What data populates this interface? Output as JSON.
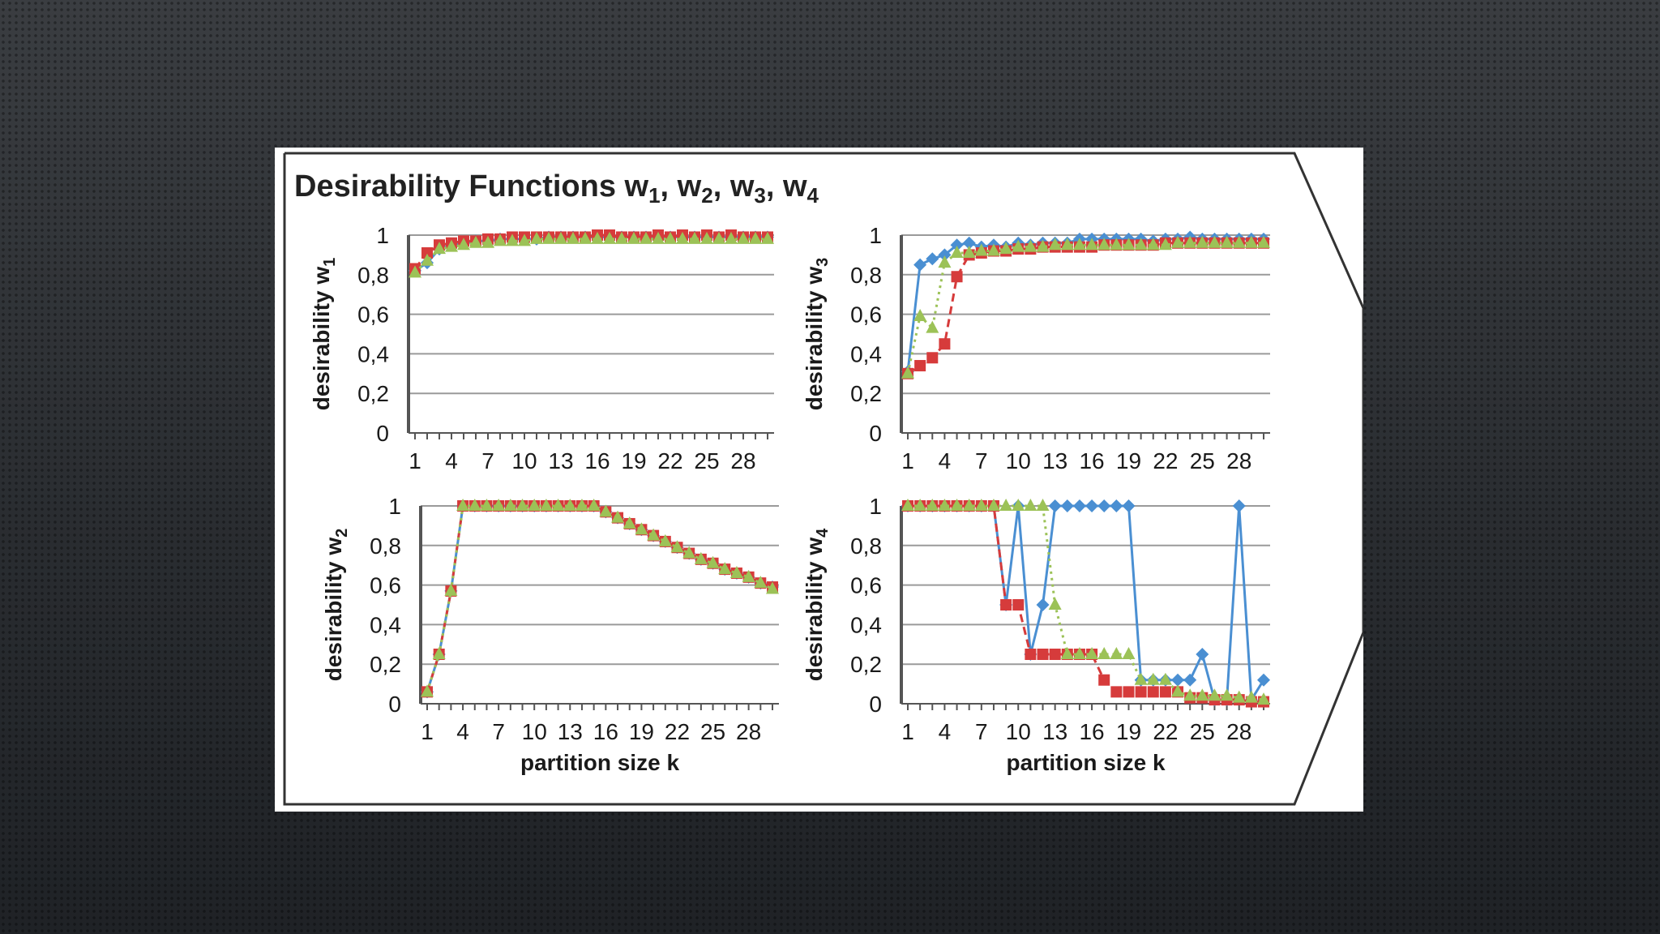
{
  "figure_title": {
    "main": "Desirability Functions w",
    "parts": [
      "1",
      ", w",
      "2",
      ", w",
      "3",
      ", w",
      "4"
    ]
  },
  "colors": {
    "blue": "#4a8fd2",
    "red": "#d63b3b",
    "green": "#9cc257",
    "grid": "#9a9a9a",
    "axis": "#555555",
    "frame": "#333333"
  },
  "chart_data": [
    {
      "type": "line",
      "id": "w1",
      "ylabel": "desirability w",
      "ylabel_sub": "1",
      "xlabel": "",
      "ylim": [
        0,
        1
      ],
      "yticks": [
        "1",
        "0,8",
        "0,6",
        "0,4",
        "0,2",
        "0"
      ],
      "xticks": [
        "1",
        "4",
        "7",
        "10",
        "13",
        "16",
        "19",
        "22",
        "25",
        "28"
      ],
      "x": [
        1,
        2,
        3,
        4,
        5,
        6,
        7,
        8,
        9,
        10,
        11,
        12,
        13,
        14,
        15,
        16,
        17,
        18,
        19,
        20,
        21,
        22,
        23,
        24,
        25,
        26,
        27,
        28,
        29,
        30
      ],
      "series": [
        {
          "color": "blue",
          "marker": "diamond",
          "values": [
            0.82,
            0.86,
            0.93,
            0.95,
            0.96,
            0.97,
            0.97,
            0.98,
            0.98,
            0.98,
            0.98,
            0.99,
            0.99,
            0.99,
            0.99,
            0.99,
            0.99,
            0.99,
            0.99,
            0.99,
            0.99,
            0.99,
            0.99,
            0.99,
            0.99,
            0.99,
            0.99,
            0.99,
            0.99,
            0.99
          ]
        },
        {
          "color": "red",
          "marker": "square",
          "values": [
            0.83,
            0.91,
            0.95,
            0.96,
            0.97,
            0.97,
            0.98,
            0.98,
            0.99,
            0.99,
            0.99,
            0.99,
            0.99,
            0.99,
            0.99,
            1.0,
            1.0,
            0.99,
            0.99,
            0.99,
            1.0,
            0.99,
            1.0,
            0.99,
            1.0,
            0.99,
            1.0,
            0.99,
            0.99,
            0.99
          ]
        },
        {
          "color": "green",
          "marker": "triangle",
          "values": [
            0.81,
            0.87,
            0.93,
            0.94,
            0.95,
            0.96,
            0.96,
            0.97,
            0.97,
            0.97,
            0.98,
            0.98,
            0.98,
            0.98,
            0.98,
            0.98,
            0.98,
            0.98,
            0.98,
            0.98,
            0.98,
            0.98,
            0.98,
            0.98,
            0.98,
            0.98,
            0.98,
            0.98,
            0.98,
            0.98
          ]
        }
      ]
    },
    {
      "type": "line",
      "id": "w3",
      "ylabel": "desirability w",
      "ylabel_sub": "3",
      "xlabel": "",
      "ylim": [
        0,
        1
      ],
      "yticks": [
        "1",
        "0,8",
        "0,6",
        "0,4",
        "0,2",
        "0"
      ],
      "xticks": [
        "1",
        "4",
        "7",
        "10",
        "13",
        "16",
        "19",
        "22",
        "25",
        "28"
      ],
      "x": [
        1,
        2,
        3,
        4,
        5,
        6,
        7,
        8,
        9,
        10,
        11,
        12,
        13,
        14,
        15,
        16,
        17,
        18,
        19,
        20,
        21,
        22,
        23,
        24,
        25,
        26,
        27,
        28,
        29,
        30
      ],
      "series": [
        {
          "color": "blue",
          "marker": "diamond",
          "values": [
            0.31,
            0.85,
            0.88,
            0.9,
            0.95,
            0.96,
            0.94,
            0.95,
            0.94,
            0.96,
            0.95,
            0.96,
            0.96,
            0.96,
            0.98,
            0.98,
            0.98,
            0.98,
            0.98,
            0.98,
            0.97,
            0.98,
            0.98,
            0.99,
            0.98,
            0.98,
            0.98,
            0.98,
            0.98,
            0.98
          ]
        },
        {
          "color": "red",
          "marker": "square",
          "values": [
            0.3,
            0.34,
            0.38,
            0.45,
            0.79,
            0.9,
            0.91,
            0.92,
            0.92,
            0.93,
            0.93,
            0.94,
            0.94,
            0.94,
            0.94,
            0.94,
            0.95,
            0.95,
            0.95,
            0.95,
            0.95,
            0.96,
            0.96,
            0.96,
            0.96,
            0.96,
            0.96,
            0.96,
            0.96,
            0.96
          ]
        },
        {
          "color": "green",
          "marker": "triangle",
          "values": [
            0.3,
            0.59,
            0.53,
            0.86,
            0.91,
            0.91,
            0.92,
            0.92,
            0.93,
            0.94,
            0.94,
            0.94,
            0.95,
            0.95,
            0.95,
            0.95,
            0.95,
            0.95,
            0.95,
            0.95,
            0.95,
            0.95,
            0.96,
            0.96,
            0.96,
            0.96,
            0.96,
            0.96,
            0.96,
            0.96
          ]
        }
      ]
    },
    {
      "type": "line",
      "id": "w2",
      "ylabel": "desirability w",
      "ylabel_sub": "2",
      "xlabel": "partition size k",
      "ylim": [
        0,
        1
      ],
      "yticks": [
        "1",
        "0,8",
        "0,6",
        "0,4",
        "0,2",
        "0"
      ],
      "xticks": [
        "1",
        "4",
        "7",
        "10",
        "13",
        "16",
        "19",
        "22",
        "25",
        "28"
      ],
      "x": [
        1,
        2,
        3,
        4,
        5,
        6,
        7,
        8,
        9,
        10,
        11,
        12,
        13,
        14,
        15,
        16,
        17,
        18,
        19,
        20,
        21,
        22,
        23,
        24,
        25,
        26,
        27,
        28,
        29,
        30
      ],
      "series": [
        {
          "color": "blue",
          "marker": "diamond",
          "values": [
            0.06,
            0.25,
            0.57,
            1,
            1,
            1,
            1,
            1,
            1,
            1,
            1,
            1,
            1,
            1,
            1,
            0.97,
            0.94,
            0.91,
            0.88,
            0.85,
            0.82,
            0.79,
            0.76,
            0.73,
            0.71,
            0.68,
            0.66,
            0.64,
            0.61,
            0.59
          ]
        },
        {
          "color": "red",
          "marker": "square",
          "values": [
            0.06,
            0.25,
            0.57,
            1,
            1,
            1,
            1,
            1,
            1,
            1,
            1,
            1,
            1,
            1,
            1,
            0.97,
            0.94,
            0.91,
            0.88,
            0.85,
            0.82,
            0.79,
            0.76,
            0.73,
            0.71,
            0.68,
            0.66,
            0.64,
            0.61,
            0.59
          ]
        },
        {
          "color": "green",
          "marker": "triangle",
          "values": [
            0.06,
            0.25,
            0.57,
            1,
            1,
            1,
            1,
            1,
            1,
            1,
            1,
            1,
            1,
            1,
            1,
            0.97,
            0.94,
            0.91,
            0.88,
            0.85,
            0.82,
            0.79,
            0.76,
            0.73,
            0.71,
            0.68,
            0.66,
            0.64,
            0.61,
            0.58
          ]
        }
      ]
    },
    {
      "type": "line",
      "id": "w4",
      "ylabel": "desirability w",
      "ylabel_sub": "4",
      "xlabel": "partition size k",
      "ylim": [
        0,
        1
      ],
      "yticks": [
        "1",
        "0,8",
        "0,6",
        "0,4",
        "0,2",
        "0"
      ],
      "xticks": [
        "1",
        "4",
        "7",
        "10",
        "13",
        "16",
        "19",
        "22",
        "25",
        "28"
      ],
      "x": [
        1,
        2,
        3,
        4,
        5,
        6,
        7,
        8,
        9,
        10,
        11,
        12,
        13,
        14,
        15,
        16,
        17,
        18,
        19,
        20,
        21,
        22,
        23,
        24,
        25,
        26,
        27,
        28,
        29,
        30
      ],
      "series": [
        {
          "color": "blue",
          "marker": "diamond",
          "values": [
            1,
            1,
            1,
            1,
            1,
            1,
            1,
            1,
            0.5,
            1,
            0.25,
            0.5,
            1,
            1,
            1,
            1,
            1,
            1,
            1,
            0.12,
            0.12,
            0.12,
            0.12,
            0.12,
            0.25,
            0.02,
            0.02,
            1,
            0.02,
            0.12
          ]
        },
        {
          "color": "red",
          "marker": "square",
          "values": [
            1,
            1,
            1,
            1,
            1,
            1,
            1,
            1,
            0.5,
            0.5,
            0.25,
            0.25,
            0.25,
            0.25,
            0.25,
            0.25,
            0.12,
            0.06,
            0.06,
            0.06,
            0.06,
            0.06,
            0.06,
            0.03,
            0.03,
            0.02,
            0.02,
            0.02,
            0.01,
            0.01
          ]
        },
        {
          "color": "green",
          "marker": "triangle",
          "values": [
            1,
            1,
            1,
            1,
            1,
            1,
            1,
            1,
            1,
            1,
            1,
            1,
            0.5,
            0.25,
            0.25,
            0.25,
            0.25,
            0.25,
            0.25,
            0.12,
            0.12,
            0.12,
            0.06,
            0.04,
            0.04,
            0.04,
            0.04,
            0.03,
            0.03,
            0.02
          ]
        }
      ]
    }
  ]
}
